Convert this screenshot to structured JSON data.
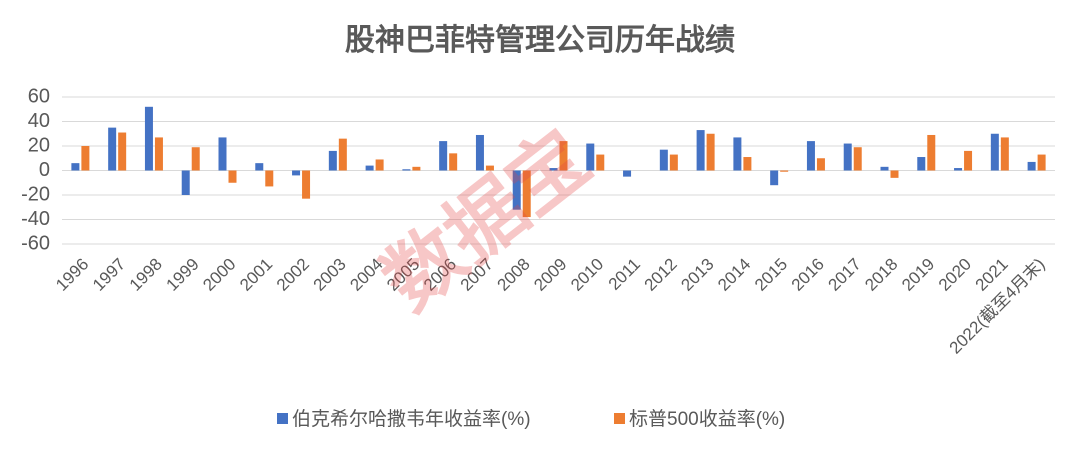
{
  "chart_data": {
    "type": "bar",
    "title": "股神巴菲特管理公司历年战绩",
    "watermark": "数据宝",
    "categories": [
      "1996",
      "1997",
      "1998",
      "1999",
      "2000",
      "2001",
      "2002",
      "2003",
      "2004",
      "2005",
      "2006",
      "2007",
      "2008",
      "2009",
      "2010",
      "2011",
      "2012",
      "2013",
      "2014",
      "2015",
      "2016",
      "2017",
      "2018",
      "2019",
      "2020",
      "2021",
      "2022(截至4月末)"
    ],
    "series": [
      {
        "name": "伯克希尔哈撒韦年收益率(%)",
        "color": "#4472c4",
        "values": [
          6,
          35,
          52,
          -20,
          27,
          6,
          -4,
          16,
          4,
          1,
          24,
          29,
          -32,
          2,
          22,
          -5,
          17,
          33,
          27,
          -12,
          24,
          22,
          3,
          11,
          2,
          30,
          7
        ]
      },
      {
        "name": "标普500收益率(%)",
        "color": "#ed7d31",
        "values": [
          20,
          31,
          27,
          19,
          -10,
          -13,
          -23,
          26,
          9,
          3,
          14,
          4,
          -38,
          24,
          13,
          0,
          13,
          30,
          11,
          -1,
          10,
          19,
          -6,
          29,
          16,
          27,
          13
        ]
      }
    ],
    "ylim": [
      -60,
      60
    ],
    "yticks": [
      -60,
      -40,
      -20,
      0,
      20,
      40,
      60
    ],
    "grid": true,
    "legend": "bottom"
  }
}
